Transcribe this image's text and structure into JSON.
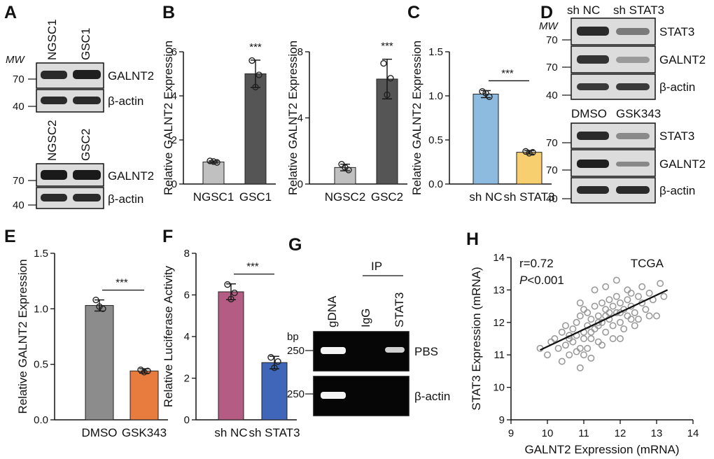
{
  "panel_letters": [
    "A",
    "B",
    "C",
    "D",
    "E",
    "F",
    "G",
    "H"
  ],
  "blots": {
    "A": {
      "mw_label": "MW",
      "top": {
        "lanes": [
          "NGSC1",
          "GSC1"
        ],
        "rows": [
          {
            "label": "GALNT2",
            "mw": "70"
          },
          {
            "label": "β-actin",
            "mw": "40"
          }
        ]
      },
      "bottom": {
        "lanes": [
          "NGSC2",
          "GSC2"
        ],
        "rows": [
          {
            "label": "GALNT2",
            "mw": "70"
          },
          {
            "label": "β-actin",
            "mw": "40"
          }
        ]
      }
    },
    "D": {
      "mw_label": "MW",
      "top": {
        "lanes": [
          "sh NC",
          "sh STAT3"
        ],
        "rows": [
          {
            "label": "STAT3",
            "mw": "70"
          },
          {
            "label": "GALNT2",
            "mw": "70"
          },
          {
            "label": "β-actin",
            "mw": "40"
          }
        ]
      },
      "bottom": {
        "lanes": [
          "DMSO",
          "GSK343"
        ],
        "rows": [
          {
            "label": "STAT3",
            "mw": "70"
          },
          {
            "label": "GALNT2",
            "mw": "70"
          },
          {
            "label": "β-actin",
            "mw": "40"
          }
        ]
      }
    },
    "G": {
      "bp_label": "bp",
      "ip_label": "IP",
      "lanes": [
        "gDNA",
        "IgG",
        "STAT3"
      ],
      "rows": [
        {
          "label": "PBS",
          "bp": "250"
        },
        {
          "label": "β-actin",
          "bp": "250"
        }
      ]
    }
  },
  "chart_data": [
    {
      "panel": "B",
      "type": "bar",
      "title": "",
      "categories": [
        "NGSC1",
        "GSC1"
      ],
      "values": [
        1.0,
        5.0
      ],
      "errors": [
        0.05,
        0.62
      ],
      "points": [
        [
          1.05,
          0.98,
          1.02
        ],
        [
          5.6,
          4.95,
          4.4
        ]
      ],
      "ylabel": "Relative GALNT2 Expression",
      "ylim": [
        0,
        6
      ],
      "yticks": [
        0,
        2,
        4,
        6
      ],
      "colors": [
        "#c0c0c0",
        "#555555"
      ],
      "significance": "***"
    },
    {
      "panel": "B2",
      "type": "bar",
      "title": "",
      "categories": [
        "NGSC2",
        "GSC2"
      ],
      "values": [
        1.0,
        6.35
      ],
      "errors": [
        0.2,
        1.2
      ],
      "points": [
        [
          1.2,
          0.85,
          1.0
        ],
        [
          7.3,
          6.4,
          5.4
        ]
      ],
      "ylabel": "Relative GALNT2 Expression",
      "ylim": [
        0,
        8
      ],
      "yticks": [
        0,
        4,
        8
      ],
      "colors": [
        "#c0c0c0",
        "#555555"
      ],
      "significance": "***"
    },
    {
      "panel": "C",
      "type": "bar",
      "title": "",
      "categories": [
        "sh NC",
        "sh STAT3"
      ],
      "values": [
        1.02,
        0.36
      ],
      "errors": [
        0.04,
        0.02
      ],
      "points": [
        [
          1.05,
          0.99,
          1.03
        ],
        [
          0.37,
          0.36,
          0.35
        ]
      ],
      "ylabel": "Relative GALNT2 Expression",
      "ylim": [
        0,
        1.5
      ],
      "yticks": [
        0.0,
        0.5,
        1.0,
        1.5
      ],
      "colors": [
        "#8dbbe0",
        "#f7cf6e"
      ],
      "significance": "***"
    },
    {
      "panel": "E",
      "type": "bar",
      "title": "",
      "categories": [
        "DMSO",
        "GSK343"
      ],
      "values": [
        1.03,
        0.44
      ],
      "errors": [
        0.05,
        0.02
      ],
      "points": [
        [
          1.08,
          1.0,
          1.02
        ],
        [
          0.45,
          0.44,
          0.43
        ]
      ],
      "ylabel": "Relative GALNT2 Expression",
      "ylim": [
        0,
        1.5
      ],
      "yticks": [
        0.0,
        0.5,
        1.0,
        1.5
      ],
      "colors": [
        "#8c8c8c",
        "#e87b3e"
      ],
      "significance": "***"
    },
    {
      "panel": "F",
      "type": "bar",
      "title": "",
      "categories": [
        "sh NC",
        "sh STAT3"
      ],
      "values": [
        6.15,
        2.75
      ],
      "errors": [
        0.38,
        0.3
      ],
      "points": [
        [
          6.5,
          6.1,
          5.8
        ],
        [
          3.0,
          2.8,
          2.5
        ]
      ],
      "ylabel": "Relative Luciferase Activity",
      "ylim": [
        0,
        8
      ],
      "yticks": [
        0,
        2,
        4,
        6,
        8
      ],
      "colors": [
        "#b55c84",
        "#3f66b8"
      ],
      "significance": "***"
    },
    {
      "panel": "H",
      "type": "scatter",
      "title": "",
      "xlabel": "GALNT2 Expression  (mRNA)",
      "ylabel": "STAT3 Expression  (mRNA)",
      "xlim": [
        9,
        14
      ],
      "ylim": [
        9,
        14
      ],
      "xticks": [
        9,
        10,
        11,
        12,
        13,
        14
      ],
      "yticks": [
        9,
        10,
        11,
        12,
        13,
        14
      ],
      "r_text": "r=0.72",
      "p_label": "P",
      "p_text": "<0.001",
      "dataset": "TCGA",
      "fit_line": [
        [
          9.8,
          11.15
        ],
        [
          13.3,
          13.0
        ]
      ],
      "points": [
        [
          9.8,
          11.2
        ],
        [
          10.0,
          11.0
        ],
        [
          10.1,
          11.4
        ],
        [
          10.2,
          11.5
        ],
        [
          10.3,
          11.2
        ],
        [
          10.4,
          11.7
        ],
        [
          10.5,
          11.3
        ],
        [
          10.5,
          11.9
        ],
        [
          10.6,
          11.6
        ],
        [
          10.6,
          11.0
        ],
        [
          10.7,
          11.8
        ],
        [
          10.7,
          11.4
        ],
        [
          10.8,
          12.0
        ],
        [
          10.8,
          11.6
        ],
        [
          10.9,
          11.2
        ],
        [
          10.9,
          12.2
        ],
        [
          11.0,
          11.7
        ],
        [
          11.0,
          12.4
        ],
        [
          11.0,
          11.0
        ],
        [
          11.1,
          11.9
        ],
        [
          11.1,
          12.3
        ],
        [
          11.2,
          11.5
        ],
        [
          11.2,
          12.1
        ],
        [
          11.3,
          12.5
        ],
        [
          11.3,
          11.8
        ],
        [
          11.4,
          12.2
        ],
        [
          11.4,
          11.4
        ],
        [
          11.5,
          12.6
        ],
        [
          11.5,
          12.0
        ],
        [
          11.6,
          11.7
        ],
        [
          11.6,
          12.4
        ],
        [
          11.7,
          12.7
        ],
        [
          11.7,
          12.1
        ],
        [
          11.8,
          11.9
        ],
        [
          11.8,
          12.5
        ],
        [
          11.9,
          12.3
        ],
        [
          11.9,
          12.8
        ],
        [
          12.0,
          12.0
        ],
        [
          12.0,
          12.6
        ],
        [
          12.1,
          12.4
        ],
        [
          12.1,
          11.8
        ],
        [
          12.2,
          12.7
        ],
        [
          12.2,
          12.2
        ],
        [
          12.3,
          12.9
        ],
        [
          12.3,
          12.5
        ],
        [
          12.4,
          12.3
        ],
        [
          12.5,
          12.8
        ],
        [
          12.5,
          12.1
        ],
        [
          12.6,
          12.6
        ],
        [
          12.6,
          13.1
        ],
        [
          12.7,
          12.4
        ],
        [
          12.8,
          12.9
        ],
        [
          12.9,
          12.7
        ],
        [
          13.0,
          12.2
        ],
        [
          13.1,
          13.2
        ],
        [
          13.2,
          12.8
        ],
        [
          10.4,
          10.8
        ],
        [
          10.6,
          11.5
        ],
        [
          10.9,
          10.6
        ],
        [
          11.2,
          10.9
        ],
        [
          11.5,
          11.3
        ],
        [
          11.8,
          11.5
        ],
        [
          12.0,
          11.5
        ],
        [
          12.4,
          11.9
        ],
        [
          12.8,
          12.2
        ],
        [
          11.3,
          13.0
        ],
        [
          11.6,
          13.1
        ],
        [
          11.9,
          13.3
        ],
        [
          10.9,
          12.6
        ],
        [
          12.2,
          13.0
        ],
        [
          11.1,
          11.2
        ],
        [
          11.4,
          11.9
        ],
        [
          11.7,
          12.3
        ],
        [
          12.0,
          12.3
        ],
        [
          12.3,
          12.1
        ],
        [
          10.8,
          11.1
        ],
        [
          11.0,
          11.5
        ],
        [
          11.2,
          11.7
        ],
        [
          11.4,
          12.0
        ],
        [
          11.6,
          12.2
        ]
      ]
    }
  ]
}
